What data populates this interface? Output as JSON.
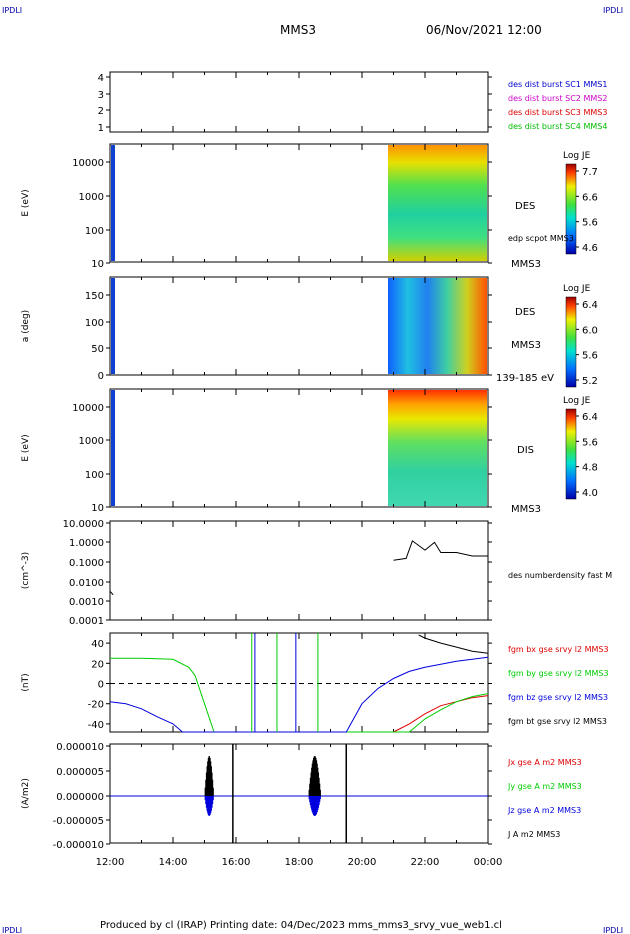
{
  "corner": {
    "tl": "IPDLI",
    "tr": "IPDLI",
    "bl": "IPDLI",
    "br": "IPDLI"
  },
  "header": {
    "spacecraft": "MMS3",
    "datetime": "06/Nov/2021 12:00"
  },
  "footer": {
    "text": "Produced by cl (IRAP)   Printing date: 04/Dec/2023   mms_mms3_srvy_vue_web1.cl"
  },
  "colors": {
    "c1": "#0000cc",
    "c2": "#cc00cc",
    "c3": "#dd0000",
    "c4": "#00bb00",
    "black": "#000000",
    "blue": "#0000dd",
    "green": "#00cc00",
    "red": "#dd0000"
  },
  "chart_data": [
    {
      "type": "line",
      "panel": "burst",
      "yticks": [
        "4",
        "3",
        "2",
        "1"
      ],
      "legend": [
        {
          "label": "des dist burst SC1 MMS1",
          "color": "#0000cc"
        },
        {
          "label": "des dist burst SC2 MMS2",
          "color": "#cc00cc"
        },
        {
          "label": "des dist burst SC3 MMS3",
          "color": "#dd0000"
        },
        {
          "label": "des dist burst SC4 MMS4",
          "color": "#00bb00"
        }
      ]
    },
    {
      "type": "heatmap",
      "panel": "des-energy",
      "ylabel": "E (eV)",
      "yscale": "log",
      "yticks": [
        "10000",
        "1000",
        "100",
        "10"
      ],
      "label": "DES",
      "sublabel": "edp scpot MMS3",
      "sc": "MMS3",
      "colorbar": {
        "title": "Log JE",
        "ticks": [
          "7.7",
          "6.6",
          "5.6",
          "4.6"
        ],
        "range": [
          4.6,
          7.7
        ]
      }
    },
    {
      "type": "heatmap",
      "panel": "des-pitch",
      "ylabel": "a (deg)",
      "yticks": [
        "150",
        "100",
        "50",
        "0"
      ],
      "label": "DES",
      "sc": "MMS3",
      "sublabel": "139-185 eV",
      "colorbar": {
        "title": "Log JE",
        "ticks": [
          "6.4",
          "6.0",
          "5.6",
          "5.2"
        ],
        "range": [
          5.2,
          6.4
        ]
      }
    },
    {
      "type": "heatmap",
      "panel": "dis-energy",
      "ylabel": "E (eV)",
      "yscale": "log",
      "yticks": [
        "10000",
        "1000",
        "100",
        "10"
      ],
      "label": "DIS",
      "sc": "MMS3",
      "colorbar": {
        "title": "Log JE",
        "ticks": [
          "6.4",
          "5.6",
          "4.8",
          "4.0"
        ],
        "range": [
          4.0,
          6.4
        ]
      }
    },
    {
      "type": "line",
      "panel": "density",
      "ylabel": "(cm^-3)",
      "yscale": "log",
      "yticks": [
        "10.0000",
        "1.0000",
        "0.1000",
        "0.0100",
        "0.0010",
        "0.0001"
      ],
      "legend": [
        {
          "label": "des numberdensity fast M",
          "color": "#000000"
        }
      ],
      "series": [
        {
          "name": "des numberdensity fast M",
          "x": [
            12.0,
            12.1,
            21.0,
            21.4,
            21.6,
            22.0,
            22.3,
            22.5,
            23.0,
            23.5,
            24.0
          ],
          "y": [
            0.003,
            0.002,
            0.12,
            0.15,
            1.2,
            0.4,
            1.0,
            0.3,
            0.3,
            0.2,
            0.2
          ]
        }
      ]
    },
    {
      "type": "line",
      "panel": "fgm",
      "ylabel": "(nT)",
      "ylim": [
        -48,
        50
      ],
      "yticks": [
        "40",
        "20",
        "0",
        "-20",
        "-40"
      ],
      "legend": [
        {
          "label": "fgm bx gse srvy l2 MMS3",
          "color": "#dd0000"
        },
        {
          "label": "fgm by gse srvy l2 MMS3",
          "color": "#00cc00"
        },
        {
          "label": "fgm bz gse srvy l2 MMS3",
          "color": "#0000dd"
        },
        {
          "label": "fgm bt gse srvy l2 MMS3",
          "color": "#000000"
        }
      ],
      "series": [
        {
          "name": "fgm bx gse srvy l2 MMS3",
          "x": [
            21.0,
            21.5,
            22.0,
            22.5,
            23.0,
            23.5,
            24.0
          ],
          "y": [
            -48,
            -40,
            -30,
            -22,
            -18,
            -14,
            -12
          ]
        },
        {
          "name": "fgm by gse srvy l2 MMS3",
          "x": [
            12.0,
            13.0,
            14.0,
            14.5,
            14.7,
            15.0,
            15.3,
            21.5,
            22.0,
            22.5,
            23.0,
            23.5,
            24.0
          ],
          "y": [
            25,
            25,
            24,
            16,
            8,
            -20,
            -48,
            -48,
            -35,
            -26,
            -18,
            -13,
            -10
          ]
        },
        {
          "name": "fgm bz gse srvy l2 MMS3",
          "x": [
            12.0,
            12.5,
            13.0,
            13.5,
            14.0,
            14.3,
            19.5,
            20.0,
            20.5,
            21.0,
            21.5,
            22.0,
            23.0,
            24.0
          ],
          "y": [
            -18,
            -20,
            -25,
            -33,
            -40,
            -48,
            -48,
            -20,
            -5,
            5,
            12,
            16,
            22,
            26
          ]
        },
        {
          "name": "fgm bt gse srvy l2 MMS3",
          "x": [
            21.8,
            22.0,
            22.5,
            23.0,
            23.5,
            24.0
          ],
          "y": [
            48,
            45,
            40,
            36,
            32,
            30
          ]
        }
      ]
    },
    {
      "type": "line",
      "panel": "current",
      "ylabel": "(A/m2)",
      "ylim": [
        -1e-05,
        1e-05
      ],
      "yticks": [
        "0.000010",
        "0.000005",
        "0.000000",
        "-0.000005",
        "-0.000010"
      ],
      "legend": [
        {
          "label": "Jx gse A m2 MMS3",
          "color": "#dd0000"
        },
        {
          "label": "Jy gse A m2 MMS3",
          "color": "#00cc00"
        },
        {
          "label": "Jz gse A m2 MMS3",
          "color": "#0000dd"
        },
        {
          "label": "J A m2 MMS3",
          "color": "#000000"
        }
      ]
    }
  ],
  "xaxis": {
    "ticks": [
      "12:00",
      "14:00",
      "16:00",
      "18:00",
      "20:00",
      "22:00",
      "00:00"
    ]
  }
}
